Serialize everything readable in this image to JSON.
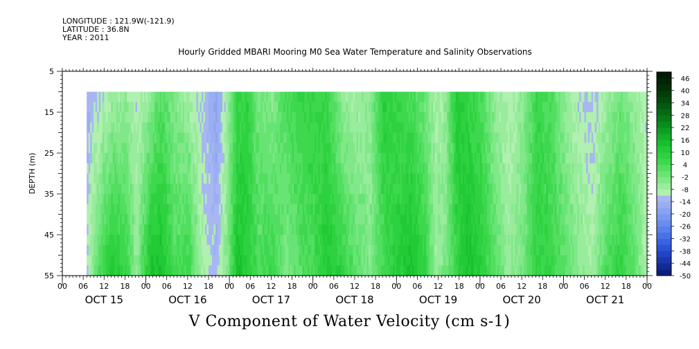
{
  "header": {
    "longitude": "LONGITUDE : 121.9W(-121.9)",
    "latitude": "LATITUDE : 36.8N",
    "year": "YEAR : 2011",
    "title": "Hourly Gridded MBARI Mooring M0 Sea Water Temperature and Salinity Observations"
  },
  "chart_data": {
    "type": "heatmap",
    "title": "Hourly Gridded MBARI Mooring M0 Sea Water Temperature and Salinity Observations",
    "xlabel": "V Component of Water Velocity (cm s-1)",
    "ylabel": "DEPTH (m)",
    "y_ticks": [
      "5",
      "15",
      "25",
      "35",
      "45",
      "55"
    ],
    "ylim": [
      55,
      5
    ],
    "x_hour_ticks": [
      "00",
      "06",
      "12",
      "18",
      "00",
      "06",
      "12",
      "18",
      "00",
      "06",
      "12",
      "18",
      "00",
      "06",
      "12",
      "18",
      "00",
      "06",
      "12",
      "18",
      "00",
      "06",
      "12",
      "18",
      "00",
      "06",
      "12",
      "18",
      "00"
    ],
    "x_day_labels": [
      "OCT 15",
      "OCT 16",
      "OCT 17",
      "OCT 18",
      "OCT 19",
      "OCT 20",
      "OCT 21"
    ],
    "x_range_hours": [
      0,
      168
    ],
    "data_depth_range_m": [
      10,
      55
    ],
    "data_start_hour": 7,
    "colorbar_labels": [
      "46",
      "40",
      "34",
      "28",
      "22",
      "16",
      "10",
      "4",
      "-2",
      "-8",
      "-14",
      "-20",
      "-26",
      "-32",
      "-38",
      "-44",
      "-50"
    ],
    "colorbar_range": [
      -50,
      49
    ],
    "colorbar_step": 3,
    "colors": {
      "negative_blue": "#8f9ff0",
      "deep_blue": "#6a86ef",
      "light_green": "#98ec9c",
      "mid_green": "#4cde58",
      "dark_green": "#16c42c"
    },
    "column_profiles": [
      {
        "hour": 7,
        "surface": -14,
        "bottom": -10
      },
      {
        "hour": 10,
        "surface": -12,
        "bottom": 2
      },
      {
        "hour": 14,
        "surface": -8,
        "bottom": 12
      },
      {
        "hour": 18,
        "surface": -6,
        "bottom": 8
      },
      {
        "hour": 21,
        "surface": -10,
        "bottom": -6
      },
      {
        "hour": 25,
        "surface": -6,
        "bottom": 14
      },
      {
        "hour": 28,
        "surface": 2,
        "bottom": 14
      },
      {
        "hour": 32,
        "surface": -4,
        "bottom": 4
      },
      {
        "hour": 36,
        "surface": -8,
        "bottom": 6
      },
      {
        "hour": 40,
        "surface": -12,
        "bottom": -8
      },
      {
        "hour": 44,
        "surface": -18,
        "bottom": -12
      },
      {
        "hour": 47,
        "surface": -8,
        "bottom": -4
      },
      {
        "hour": 50,
        "surface": 6,
        "bottom": 14
      },
      {
        "hour": 53,
        "surface": 8,
        "bottom": 10
      },
      {
        "hour": 56,
        "surface": -2,
        "bottom": 4
      },
      {
        "hour": 60,
        "surface": -4,
        "bottom": 6
      },
      {
        "hour": 64,
        "surface": 4,
        "bottom": -4
      },
      {
        "hour": 68,
        "surface": 6,
        "bottom": 2
      },
      {
        "hour": 72,
        "surface": 8,
        "bottom": 4
      },
      {
        "hour": 76,
        "surface": 6,
        "bottom": 12
      },
      {
        "hour": 80,
        "surface": -6,
        "bottom": 8
      },
      {
        "hour": 84,
        "surface": -8,
        "bottom": 2
      },
      {
        "hour": 88,
        "surface": -6,
        "bottom": -4
      },
      {
        "hour": 92,
        "surface": 10,
        "bottom": 4
      },
      {
        "hour": 96,
        "surface": 6,
        "bottom": 10
      },
      {
        "hour": 100,
        "surface": 4,
        "bottom": 14
      },
      {
        "hour": 104,
        "surface": -2,
        "bottom": 8
      },
      {
        "hour": 107,
        "surface": -8,
        "bottom": -6
      },
      {
        "hour": 110,
        "surface": -6,
        "bottom": -2
      },
      {
        "hour": 113,
        "surface": 12,
        "bottom": 6
      },
      {
        "hour": 116,
        "surface": 8,
        "bottom": 14
      },
      {
        "hour": 120,
        "surface": 4,
        "bottom": 10
      },
      {
        "hour": 124,
        "surface": -6,
        "bottom": 2
      },
      {
        "hour": 128,
        "surface": -10,
        "bottom": -6
      },
      {
        "hour": 132,
        "surface": -6,
        "bottom": -2
      },
      {
        "hour": 136,
        "surface": 6,
        "bottom": 8
      },
      {
        "hour": 140,
        "surface": 4,
        "bottom": 6
      },
      {
        "hour": 144,
        "surface": -6,
        "bottom": 2
      },
      {
        "hour": 148,
        "surface": -10,
        "bottom": -4
      },
      {
        "hour": 152,
        "surface": -12,
        "bottom": -8
      },
      {
        "hour": 156,
        "surface": -8,
        "bottom": 4
      },
      {
        "hour": 160,
        "surface": -2,
        "bottom": 8
      },
      {
        "hour": 164,
        "surface": -6,
        "bottom": 2
      },
      {
        "hour": 167,
        "surface": -10,
        "bottom": -8
      }
    ]
  }
}
